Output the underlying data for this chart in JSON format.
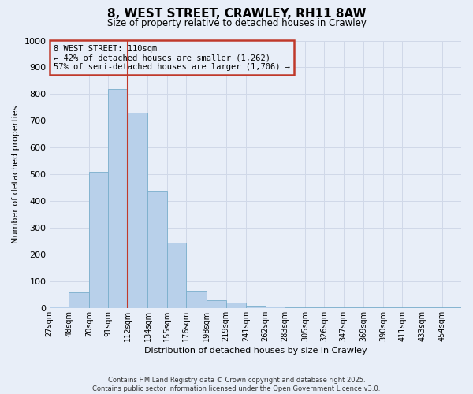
{
  "title": "8, WEST STREET, CRAWLEY, RH11 8AW",
  "subtitle": "Size of property relative to detached houses in Crawley",
  "xlabel": "Distribution of detached houses by size in Crawley",
  "ylabel": "Number of detached properties",
  "bin_edges": [
    27,
    48,
    70,
    91,
    112,
    134,
    155,
    176,
    198,
    219,
    241,
    262,
    283,
    305,
    326,
    347,
    369,
    390,
    411,
    433,
    454,
    475
  ],
  "bar_heights": [
    5,
    60,
    510,
    820,
    730,
    435,
    245,
    65,
    30,
    20,
    10,
    5,
    3,
    3,
    2,
    2,
    2,
    2,
    2,
    2,
    2
  ],
  "bar_color": "#b8d0ea",
  "bar_edgecolor": "#7aaecc",
  "property_line_x": 112,
  "property_line_color": "#c0392b",
  "ylim": [
    0,
    1000
  ],
  "yticks": [
    0,
    100,
    200,
    300,
    400,
    500,
    600,
    700,
    800,
    900,
    1000
  ],
  "xtick_labels": [
    "27sqm",
    "48sqm",
    "70sqm",
    "91sqm",
    "112sqm",
    "134sqm",
    "155sqm",
    "176sqm",
    "198sqm",
    "219sqm",
    "241sqm",
    "262sqm",
    "283sqm",
    "305sqm",
    "326sqm",
    "347sqm",
    "369sqm",
    "390sqm",
    "411sqm",
    "433sqm",
    "454sqm"
  ],
  "xtick_positions": [
    27,
    48,
    70,
    91,
    112,
    134,
    155,
    176,
    198,
    219,
    241,
    262,
    283,
    305,
    326,
    347,
    369,
    390,
    411,
    433,
    454
  ],
  "annotation_title": "8 WEST STREET: 110sqm",
  "annotation_line1": "← 42% of detached houses are smaller (1,262)",
  "annotation_line2": "57% of semi-detached houses are larger (1,706) →",
  "annotation_box_color": "#c0392b",
  "footer_line1": "Contains HM Land Registry data © Crown copyright and database right 2025.",
  "footer_line2": "Contains public sector information licensed under the Open Government Licence v3.0.",
  "background_color": "#e8eef8",
  "grid_color": "#d0d8e8"
}
